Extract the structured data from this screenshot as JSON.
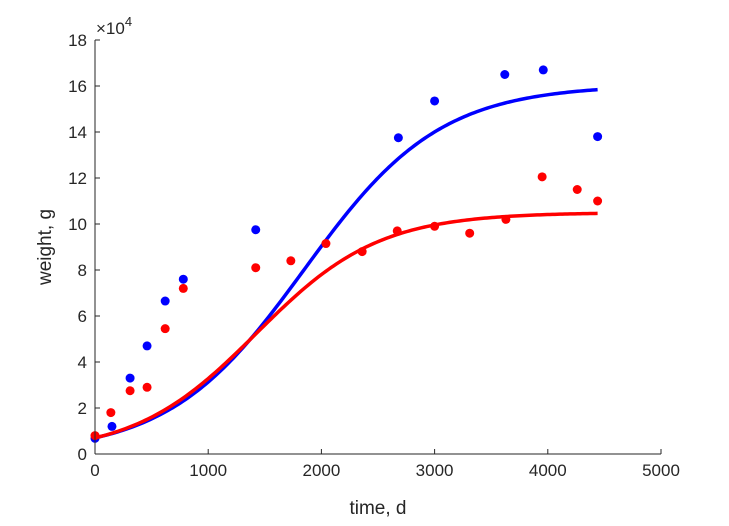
{
  "chart_data": {
    "type": "scatter",
    "xlabel": "time, d",
    "ylabel": "weight, g",
    "y_multiplier": "×10",
    "y_multiplier_exponent": "4",
    "xlim": [
      0,
      5000
    ],
    "ylim": [
      0,
      180000
    ],
    "x_ticks": [
      0,
      1000,
      2000,
      3000,
      4000,
      5000
    ],
    "y_ticks": [
      0,
      20000,
      40000,
      60000,
      80000,
      100000,
      120000,
      140000,
      160000,
      180000
    ],
    "x_tick_labels": [
      "0",
      "1000",
      "2000",
      "3000",
      "4000",
      "5000"
    ],
    "y_tick_labels": [
      "0",
      "2",
      "4",
      "6",
      "8",
      "10",
      "12",
      "14",
      "16",
      "18"
    ],
    "grid": false,
    "series": [
      {
        "color": "#0000ff",
        "marker": "dot",
        "points": [
          [
            0,
            6800
          ],
          [
            150,
            12000
          ],
          [
            310,
            33000
          ],
          [
            460,
            47000
          ],
          [
            620,
            66500
          ],
          [
            780,
            76000
          ],
          [
            1420,
            97500
          ],
          [
            2680,
            137500
          ],
          [
            3000,
            153500
          ],
          [
            3620,
            165000
          ],
          [
            3960,
            167000
          ],
          [
            4440,
            138000
          ]
        ],
        "fit": {
          "model": "logistic",
          "K": 160500,
          "r": 0.00167,
          "y0": 7000,
          "x_range": [
            0,
            4440
          ],
          "width": 3.5
        }
      },
      {
        "color": "#ff0000",
        "marker": "dot",
        "points": [
          [
            0,
            8000
          ],
          [
            140,
            18000
          ],
          [
            310,
            27500
          ],
          [
            460,
            29000
          ],
          [
            620,
            54500
          ],
          [
            780,
            72000
          ],
          [
            1420,
            81000
          ],
          [
            1730,
            84000
          ],
          [
            2040,
            91500
          ],
          [
            2360,
            88000
          ],
          [
            2670,
            97000
          ],
          [
            3000,
            99000
          ],
          [
            3310,
            96000
          ],
          [
            3630,
            102000
          ],
          [
            3950,
            120500
          ],
          [
            4260,
            115000
          ],
          [
            4440,
            110000
          ]
        ],
        "fit": {
          "model": "logistic",
          "K": 105000,
          "r": 0.00185,
          "y0": 7000,
          "x_range": [
            0,
            4440
          ],
          "width": 3.5
        }
      }
    ]
  }
}
